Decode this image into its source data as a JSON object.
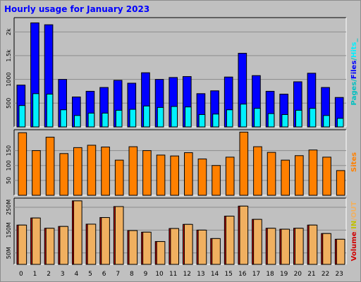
{
  "title": "Hourly usage for January 2023",
  "colors": {
    "background": "#c0c0c0",
    "title": "#0000ff",
    "hits": "#00f0ff",
    "files": "#0000ff",
    "pages": "#00c0c0",
    "sites": "#ff8000",
    "volume": "#f0b060",
    "kbin": "#d00000",
    "kbout": "#f0b060",
    "in_label": "#c0c000",
    "out_label": "#f0b060",
    "volume_label": "#d00000",
    "sites_label": "#ff8000"
  },
  "chart_data": [
    {
      "type": "bar",
      "panel": "top",
      "categories": [
        "0",
        "1",
        "2",
        "3",
        "4",
        "5",
        "6",
        "7",
        "8",
        "9",
        "10",
        "11",
        "12",
        "13",
        "14",
        "15",
        "16",
        "17",
        "18",
        "19",
        "20",
        "21",
        "22",
        "23"
      ],
      "ylim": [
        0,
        2300
      ],
      "yticks": [
        {
          "value": 500,
          "label": "500"
        },
        {
          "value": 1000,
          "label": "1000"
        },
        {
          "value": 1500,
          "label": "1.5k"
        },
        {
          "value": 2000,
          "label": "2k"
        }
      ],
      "series": [
        {
          "name": "Files",
          "values": [
            880,
            2190,
            2150,
            1000,
            630,
            750,
            830,
            980,
            920,
            1140,
            1000,
            1040,
            1060,
            700,
            760,
            1050,
            1550,
            1080,
            750,
            690,
            950,
            1130,
            830,
            620
          ]
        },
        {
          "name": "Hits",
          "values": [
            450,
            700,
            690,
            360,
            240,
            290,
            290,
            350,
            370,
            440,
            410,
            430,
            420,
            260,
            270,
            360,
            480,
            390,
            280,
            260,
            350,
            390,
            240,
            180
          ]
        }
      ],
      "legend": [
        "Pages",
        "/",
        "Files",
        "/",
        "Hits",
        "_"
      ]
    },
    {
      "type": "bar",
      "panel": "middle",
      "categories": [
        "0",
        "1",
        "2",
        "3",
        "4",
        "5",
        "6",
        "7",
        "8",
        "9",
        "10",
        "11",
        "12",
        "13",
        "14",
        "15",
        "16",
        "17",
        "18",
        "19",
        "20",
        "21",
        "22",
        "23"
      ],
      "ylim": [
        0,
        220
      ],
      "yticks": [
        {
          "value": 50,
          "label": "50"
        },
        {
          "value": 100,
          "label": "100"
        },
        {
          "value": 150,
          "label": "150"
        }
      ],
      "series": [
        {
          "name": "Sites",
          "values": [
            210,
            150,
            195,
            140,
            160,
            168,
            162,
            118,
            163,
            150,
            135,
            132,
            143,
            122,
            100,
            128,
            212,
            163,
            144,
            118,
            133,
            152,
            128,
            83
          ]
        }
      ],
      "legend": [
        "Sites"
      ]
    },
    {
      "type": "bar",
      "panel": "bottom",
      "categories": [
        "0",
        "1",
        "2",
        "3",
        "4",
        "5",
        "6",
        "7",
        "8",
        "9",
        "10",
        "11",
        "12",
        "13",
        "14",
        "15",
        "16",
        "17",
        "18",
        "19",
        "20",
        "21",
        "22",
        "23"
      ],
      "ylim": [
        0,
        290
      ],
      "yticks": [
        {
          "value": 50,
          "label": "50M"
        },
        {
          "value": 150,
          "label": "150M"
        },
        {
          "value": 250,
          "label": "250M"
        }
      ],
      "series": [
        {
          "name": "Volume",
          "values": [
            172,
            203,
            158,
            166,
            278,
            176,
            205,
            253,
            148,
            141,
            100,
            157,
            175,
            150,
            113,
            211,
            255,
            197,
            158,
            154,
            158,
            172,
            135,
            110
          ]
        }
      ],
      "legend": [
        "Volume",
        "/",
        "KB In",
        "/",
        "KB Out"
      ],
      "legend_display": [
        "Volume",
        "/",
        "IN",
        "/",
        "OUT"
      ]
    }
  ]
}
